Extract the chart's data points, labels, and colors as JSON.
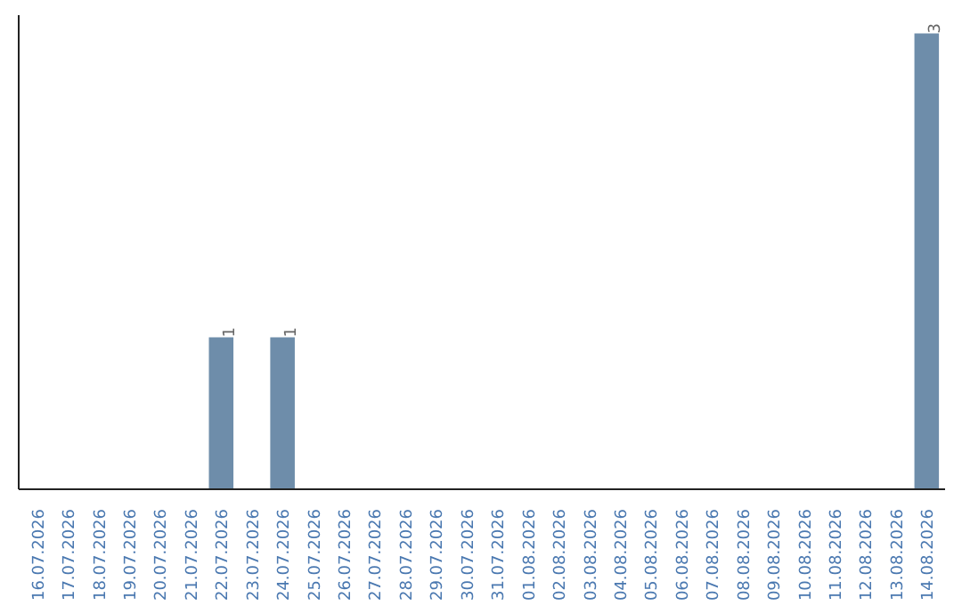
{
  "chart_data": {
    "type": "bar",
    "categories": [
      "16.07.2026",
      "17.07.2026",
      "18.07.2026",
      "19.07.2026",
      "20.07.2026",
      "21.07.2026",
      "22.07.2026",
      "23.07.2026",
      "24.07.2026",
      "25.07.2026",
      "26.07.2026",
      "27.07.2026",
      "28.07.2026",
      "29.07.2026",
      "30.07.2026",
      "31.07.2026",
      "01.08.2026",
      "02.08.2026",
      "03.08.2026",
      "04.08.2026",
      "05.08.2026",
      "06.08.2026",
      "07.08.2026",
      "08.08.2026",
      "09.08.2026",
      "10.08.2026",
      "11.08.2026",
      "12.08.2026",
      "13.08.2026",
      "14.08.2026"
    ],
    "values": [
      0,
      0,
      0,
      0,
      0,
      0,
      1,
      0,
      1,
      0,
      0,
      0,
      0,
      0,
      0,
      0,
      0,
      0,
      0,
      0,
      0,
      0,
      0,
      0,
      0,
      0,
      0,
      0,
      0,
      3
    ],
    "value_labels": [
      null,
      null,
      null,
      null,
      null,
      null,
      "1",
      null,
      "1",
      null,
      null,
      null,
      null,
      null,
      null,
      null,
      null,
      null,
      null,
      null,
      null,
      null,
      null,
      null,
      null,
      null,
      null,
      null,
      null,
      "3"
    ],
    "color": "#6e8daa",
    "grid": false,
    "tick_labels": "x"
  }
}
